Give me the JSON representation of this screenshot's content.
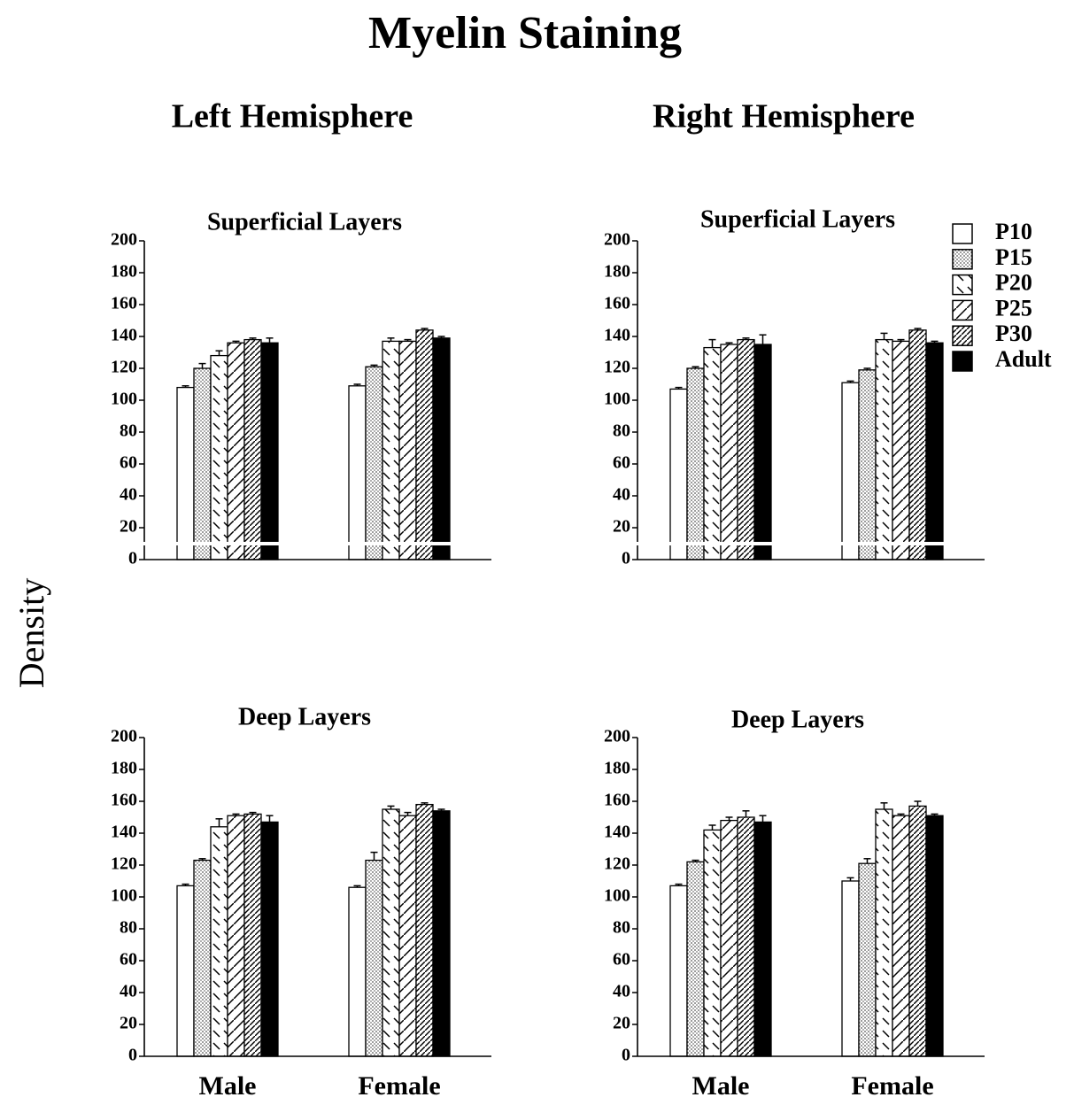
{
  "title": "Myelin Staining",
  "headings": [
    "Left Hemisphere",
    "Right Hemisphere"
  ],
  "y_label": "Density",
  "chart_data": [
    {
      "type": "bar",
      "title": "Superficial Layers",
      "categories": [
        null,
        null
      ],
      "ylim": [
        0,
        200
      ],
      "yticks": [
        0,
        20,
        40,
        60,
        80,
        100,
        120,
        140,
        160,
        180,
        200
      ],
      "series": [
        {
          "pattern": "white",
          "values": [
            108,
            109
          ],
          "errors": [
            1,
            1
          ]
        },
        {
          "pattern": "dots",
          "values": [
            120,
            121
          ],
          "errors": [
            3,
            1
          ]
        },
        {
          "pattern": "dash",
          "values": [
            128,
            137
          ],
          "errors": [
            3,
            2
          ]
        },
        {
          "pattern": "diag",
          "values": [
            136,
            137
          ],
          "errors": [
            1,
            1
          ]
        },
        {
          "pattern": "dense",
          "values": [
            138,
            144
          ],
          "errors": [
            1,
            1
          ]
        },
        {
          "pattern": "black",
          "values": [
            136,
            139
          ],
          "errors": [
            3,
            1
          ]
        }
      ]
    },
    {
      "type": "bar",
      "title": "Superficial Layers",
      "categories": [
        null,
        null
      ],
      "ylim": [
        0,
        200
      ],
      "yticks": [
        0,
        20,
        40,
        60,
        80,
        100,
        120,
        140,
        160,
        180,
        200
      ],
      "legend": true,
      "series": [
        {
          "name": "P10",
          "pattern": "white",
          "values": [
            107,
            111
          ],
          "errors": [
            1,
            1
          ]
        },
        {
          "name": "P15",
          "pattern": "dots",
          "values": [
            120,
            119
          ],
          "errors": [
            1,
            1
          ]
        },
        {
          "name": "P20",
          "pattern": "dash",
          "values": [
            133,
            138
          ],
          "errors": [
            5,
            4
          ]
        },
        {
          "name": "P25",
          "pattern": "diag",
          "values": [
            135,
            137
          ],
          "errors": [
            1,
            1
          ]
        },
        {
          "name": "P30",
          "pattern": "dense",
          "values": [
            138,
            144
          ],
          "errors": [
            1,
            1
          ]
        },
        {
          "name": "Adult",
          "pattern": "black",
          "values": [
            135,
            136
          ],
          "errors": [
            6,
            1
          ]
        }
      ]
    },
    {
      "type": "bar",
      "title": "Deep Layers",
      "categories": [
        "Male",
        "Female"
      ],
      "ylim": [
        0,
        200
      ],
      "yticks": [
        0,
        20,
        40,
        60,
        80,
        100,
        120,
        140,
        160,
        180,
        200
      ],
      "series": [
        {
          "pattern": "white",
          "values": [
            107,
            106
          ],
          "errors": [
            1,
            1
          ]
        },
        {
          "pattern": "dots",
          "values": [
            123,
            123
          ],
          "errors": [
            1,
            5
          ]
        },
        {
          "pattern": "dash",
          "values": [
            144,
            155
          ],
          "errors": [
            5,
            2
          ]
        },
        {
          "pattern": "diag",
          "values": [
            151,
            151
          ],
          "errors": [
            1,
            2
          ]
        },
        {
          "pattern": "dense",
          "values": [
            152,
            158
          ],
          "errors": [
            1,
            1
          ]
        },
        {
          "pattern": "black",
          "values": [
            147,
            154
          ],
          "errors": [
            4,
            1
          ]
        }
      ]
    },
    {
      "type": "bar",
      "title": "Deep Layers",
      "categories": [
        "Male",
        "Female"
      ],
      "ylim": [
        0,
        200
      ],
      "yticks": [
        0,
        20,
        40,
        60,
        80,
        100,
        120,
        140,
        160,
        180,
        200
      ],
      "series": [
        {
          "pattern": "white",
          "values": [
            107,
            110
          ],
          "errors": [
            1,
            2
          ]
        },
        {
          "pattern": "dots",
          "values": [
            122,
            121
          ],
          "errors": [
            1,
            3
          ]
        },
        {
          "pattern": "dash",
          "values": [
            142,
            155
          ],
          "errors": [
            3,
            4
          ]
        },
        {
          "pattern": "diag",
          "values": [
            148,
            151
          ],
          "errors": [
            2,
            1
          ]
        },
        {
          "pattern": "dense",
          "values": [
            150,
            157
          ],
          "errors": [
            4,
            3
          ]
        },
        {
          "pattern": "black",
          "values": [
            147,
            151
          ],
          "errors": [
            4,
            1
          ]
        }
      ]
    }
  ]
}
